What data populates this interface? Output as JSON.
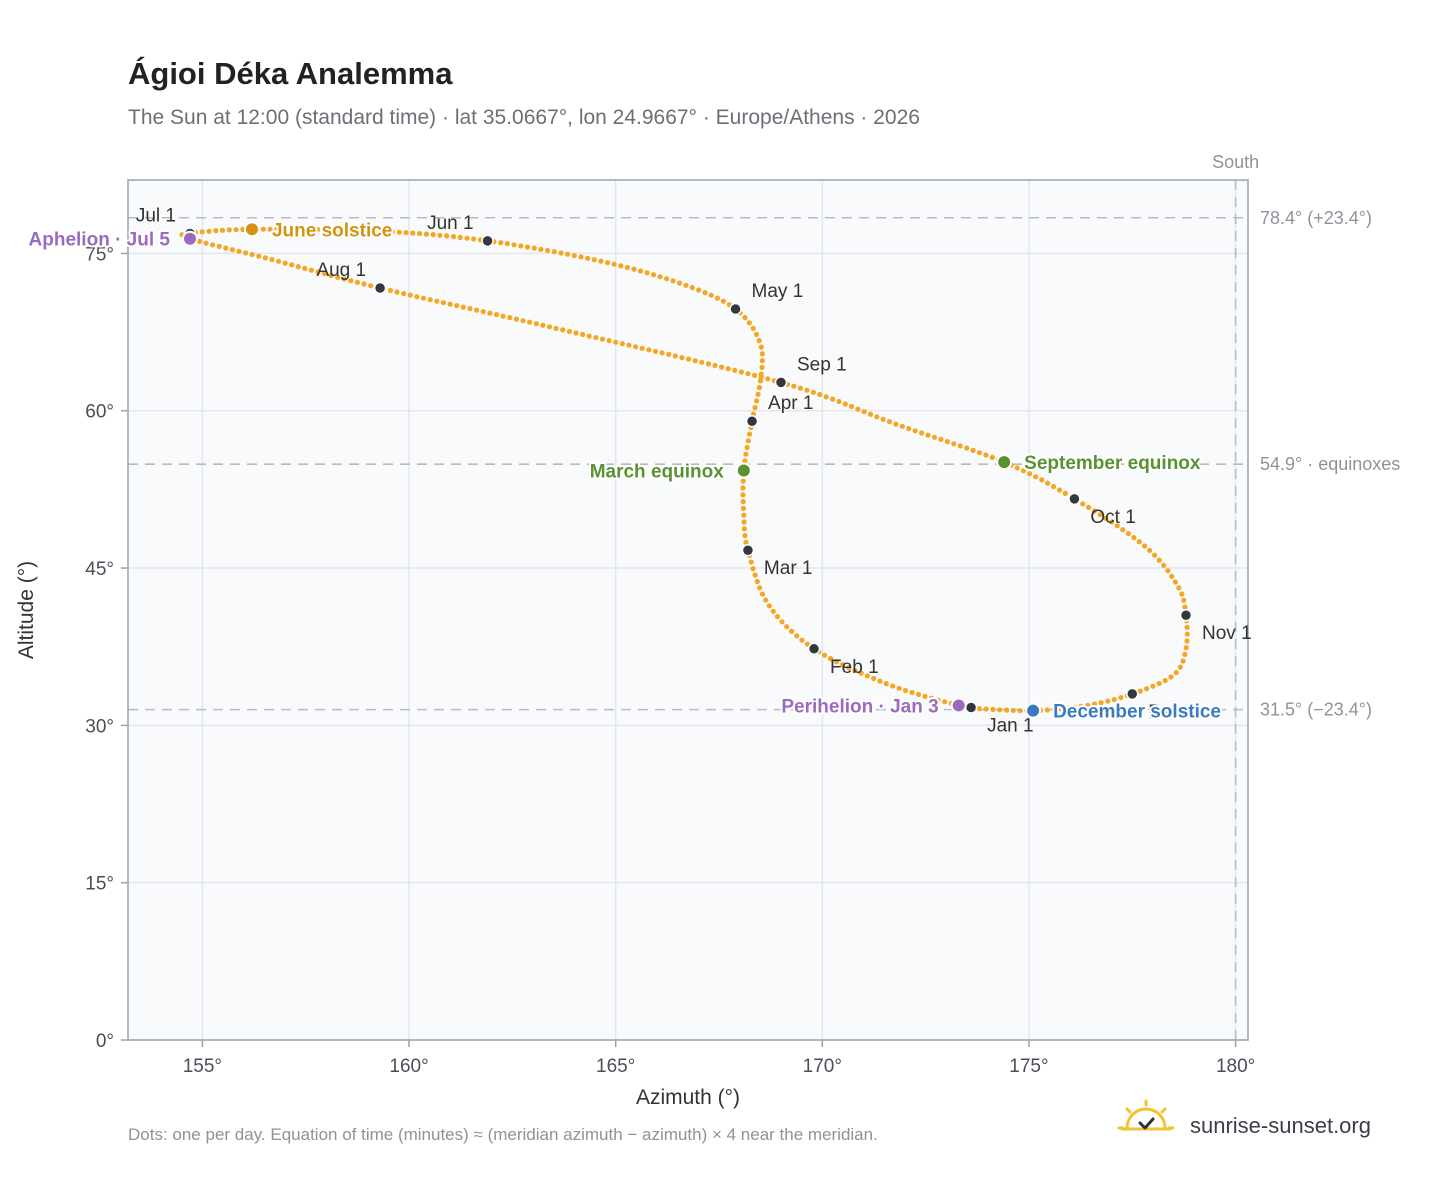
{
  "title": "Ágioi Déka Analemma",
  "subtitle": "The Sun at 12:00 (standard time) · lat 35.0667°, lon 24.9667° · Europe/Athens · 2026",
  "footer_note": "Dots: one per day. Equation of time (minutes) ≈ (meridian azimuth − azimuth) × 4 near the meridian.",
  "brand": {
    "name": "sunrise-sunset.org",
    "logo_icon": "sun-logo-icon"
  },
  "colors": {
    "path": "#f5a623",
    "month_marker": "#333840",
    "solstice_june": "#d4920e",
    "equinox": "#5a9232",
    "solstice_december": "#3a7abf",
    "apsis": "#9b6bbd",
    "plot_bg": "#f8fafc",
    "grid": "#e3e7ed",
    "reference_line": "#b6bcc4"
  },
  "chart_data": {
    "type": "scatter",
    "title": "Ágioi Déka Analemma",
    "subtitle": "The Sun at 12:00 (standard time) · lat 35.0667°, lon 24.9667° · Europe/Athens · 2026",
    "xlabel": "Azimuth (°)",
    "ylabel": "Altitude (°)",
    "xlim": [
      153.2,
      180.3
    ],
    "ylim": [
      0,
      82
    ],
    "x_ticks": [
      155,
      160,
      165,
      170,
      175,
      180
    ],
    "x_tick_labels": [
      "155°",
      "160°",
      "165°",
      "170°",
      "175°",
      "180°"
    ],
    "y_ticks": [
      0,
      15,
      30,
      45,
      60,
      75
    ],
    "y_tick_labels": [
      "0°",
      "15°",
      "30°",
      "45°",
      "60°",
      "75°"
    ],
    "grid": true,
    "meridian": {
      "azimuth": 180,
      "label": "South"
    },
    "reference_lines": [
      {
        "altitude": 78.4,
        "label": "78.4° (+23.4°)"
      },
      {
        "altitude": 54.9,
        "label": "54.9° · equinoxes"
      },
      {
        "altitude": 31.5,
        "label": "31.5° (−23.4°)"
      }
    ],
    "daily_path": {
      "description_points_per": "day",
      "anchors": [
        {
          "date": "Jan 1",
          "az": 173.6,
          "alt": 31.7
        },
        {
          "date": "Jan 3",
          "az": 173.3,
          "alt": 31.9
        },
        {
          "date": "Jan 16",
          "az": 171.6,
          "alt": 33.9
        },
        {
          "date": "Feb 1",
          "az": 169.8,
          "alt": 37.3
        },
        {
          "date": "Feb 15",
          "az": 168.7,
          "alt": 41.5
        },
        {
          "date": "Mar 1",
          "az": 168.2,
          "alt": 46.7
        },
        {
          "date": "Mar 10",
          "az": 168.1,
          "alt": 50.1
        },
        {
          "date": "Mar 20",
          "az": 168.1,
          "alt": 54.3
        },
        {
          "date": "Apr 1",
          "az": 168.3,
          "alt": 59.0
        },
        {
          "date": "Apr 10",
          "az": 168.5,
          "alt": 62.8
        },
        {
          "date": "Apr 20",
          "az": 168.5,
          "alt": 66.4
        },
        {
          "date": "May 1",
          "az": 167.9,
          "alt": 69.7
        },
        {
          "date": "May 10",
          "az": 166.6,
          "alt": 72.1
        },
        {
          "date": "May 20",
          "az": 164.6,
          "alt": 74.3
        },
        {
          "date": "Jun 1",
          "az": 161.9,
          "alt": 76.2
        },
        {
          "date": "Jun 10",
          "az": 159.4,
          "alt": 77.1
        },
        {
          "date": "Jun 21",
          "az": 156.2,
          "alt": 77.3
        },
        {
          "date": "Jul 1",
          "az": 154.7,
          "alt": 76.9
        },
        {
          "date": "Jul 5",
          "az": 154.7,
          "alt": 76.4
        },
        {
          "date": "Jul 15",
          "az": 156.6,
          "alt": 74.5
        },
        {
          "date": "Aug 1",
          "az": 159.3,
          "alt": 71.7
        },
        {
          "date": "Aug 15",
          "az": 163.4,
          "alt": 68.0
        },
        {
          "date": "Sep 1",
          "az": 169.0,
          "alt": 62.7
        },
        {
          "date": "Sep 12",
          "az": 171.8,
          "alt": 58.7
        },
        {
          "date": "Sep 22",
          "az": 174.4,
          "alt": 55.1
        },
        {
          "date": "Oct 1",
          "az": 176.1,
          "alt": 51.6
        },
        {
          "date": "Oct 12",
          "az": 177.8,
          "alt": 47.1
        },
        {
          "date": "Oct 22",
          "az": 178.6,
          "alt": 43.3
        },
        {
          "date": "Nov 1",
          "az": 178.8,
          "alt": 40.5
        },
        {
          "date": "Nov 10",
          "az": 178.8,
          "alt": 37.3
        },
        {
          "date": "Nov 20",
          "az": 178.5,
          "alt": 34.8
        },
        {
          "date": "Dec 1",
          "az": 177.5,
          "alt": 33.0
        },
        {
          "date": "Dec 10",
          "az": 176.4,
          "alt": 31.9
        },
        {
          "date": "Dec 21",
          "az": 175.1,
          "alt": 31.4
        },
        {
          "date": "Dec 31",
          "az": 173.8,
          "alt": 31.6
        }
      ]
    },
    "month_markers": [
      {
        "label": "Jan 1",
        "az": 173.6,
        "alt": 31.7,
        "pos": "below-right"
      },
      {
        "label": "Feb 1",
        "az": 169.8,
        "alt": 37.3,
        "pos": "below-right"
      },
      {
        "label": "Mar 1",
        "az": 168.2,
        "alt": 46.7,
        "pos": "right-below"
      },
      {
        "label": "Apr 1",
        "az": 168.3,
        "alt": 59.0,
        "pos": "above-right"
      },
      {
        "label": "May 1",
        "az": 167.9,
        "alt": 69.7,
        "pos": "above-right"
      },
      {
        "label": "Jun 1",
        "az": 161.9,
        "alt": 76.2,
        "pos": "above-left"
      },
      {
        "label": "Jul 1",
        "az": 154.7,
        "alt": 76.9,
        "pos": "above-left"
      },
      {
        "label": "Aug 1",
        "az": 159.3,
        "alt": 71.7,
        "pos": "above-left"
      },
      {
        "label": "Sep 1",
        "az": 169.0,
        "alt": 62.7,
        "pos": "above-right"
      },
      {
        "label": "Oct 1",
        "az": 176.1,
        "alt": 51.6,
        "pos": "below-right"
      },
      {
        "label": "Nov 1",
        "az": 178.8,
        "alt": 40.5,
        "pos": "below-right"
      },
      {
        "label": "Dec 1",
        "az": 177.5,
        "alt": 33.0,
        "pos": "below-right"
      }
    ],
    "events": [
      {
        "label": "June solstice",
        "az": 156.2,
        "alt": 77.3,
        "color": "#d4920e",
        "side": "right"
      },
      {
        "label": "March equinox",
        "az": 168.1,
        "alt": 54.3,
        "color": "#5a9232",
        "side": "left"
      },
      {
        "label": "September equinox",
        "az": 174.4,
        "alt": 55.1,
        "color": "#5a9232",
        "side": "right"
      },
      {
        "label": "December solstice",
        "az": 175.1,
        "alt": 31.4,
        "color": "#3a7abf",
        "side": "right"
      },
      {
        "label": "Aphelion · Jul 5",
        "az": 154.7,
        "alt": 76.4,
        "color": "#9b6bbd",
        "side": "left"
      },
      {
        "label": "Perihelion · Jan 3",
        "az": 173.3,
        "alt": 31.9,
        "color": "#9b6bbd",
        "side": "left"
      }
    ]
  }
}
